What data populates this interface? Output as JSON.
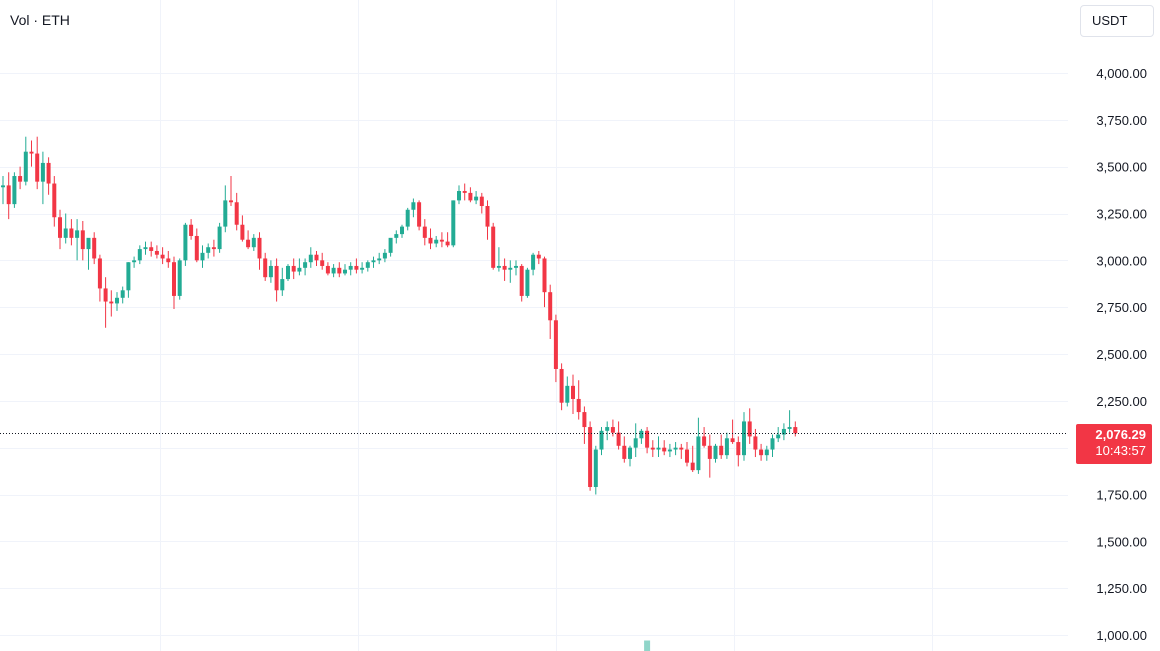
{
  "header": {
    "vol_label": "Vol · ETH"
  },
  "currency_button": {
    "label": "USDT"
  },
  "price_badge": {
    "price": "2,076.29",
    "countdown": "10:43:57"
  },
  "colors": {
    "up": "#22ab94",
    "down": "#f23645",
    "grid": "#f0f3fa",
    "text": "#131722",
    "last_line": "#131722"
  },
  "chart_data": {
    "type": "candlestick",
    "symbol": "ETH",
    "quote": "USDT",
    "y_axis": {
      "ticks": [
        "4,000.00",
        "3,750.00",
        "3,500.00",
        "3,250.00",
        "3,000.00",
        "2,750.00",
        "2,500.00",
        "2,250.00",
        "1,750.00",
        "1,500.00",
        "1,250.00",
        "1,000.00"
      ],
      "tick_values": [
        4000,
        3750,
        3500,
        3250,
        3000,
        2750,
        2500,
        2250,
        1750,
        1500,
        1250,
        1000
      ],
      "range": [
        950,
        4300
      ]
    },
    "last_price": 2076.29,
    "volume_bar": {
      "index": 113,
      "relative": 0.15
    },
    "candles": [
      [
        3390,
        3450,
        3300,
        3400
      ],
      [
        3400,
        3470,
        3220,
        3300
      ],
      [
        3300,
        3470,
        3280,
        3450
      ],
      [
        3450,
        3500,
        3380,
        3420
      ],
      [
        3420,
        3660,
        3400,
        3580
      ],
      [
        3580,
        3640,
        3500,
        3570
      ],
      [
        3570,
        3660,
        3380,
        3420
      ],
      [
        3420,
        3580,
        3300,
        3520
      ],
      [
        3520,
        3550,
        3350,
        3410
      ],
      [
        3410,
        3450,
        3180,
        3230
      ],
      [
        3230,
        3270,
        3060,
        3120
      ],
      [
        3120,
        3250,
        3090,
        3170
      ],
      [
        3170,
        3220,
        3080,
        3120
      ],
      [
        3120,
        3220,
        3000,
        3160
      ],
      [
        3160,
        3210,
        3000,
        3060
      ],
      [
        3060,
        3110,
        2950,
        3120
      ],
      [
        3120,
        3150,
        2980,
        3010
      ],
      [
        3010,
        3030,
        2780,
        2850
      ],
      [
        2850,
        2910,
        2640,
        2780
      ],
      [
        2780,
        2840,
        2700,
        2770
      ],
      [
        2770,
        2830,
        2730,
        2800
      ],
      [
        2800,
        2860,
        2770,
        2840
      ],
      [
        2840,
        2990,
        2800,
        2990
      ],
      [
        2990,
        3020,
        2960,
        3000
      ],
      [
        3000,
        3080,
        2980,
        3060
      ],
      [
        3060,
        3100,
        3030,
        3070
      ],
      [
        3070,
        3100,
        3020,
        3050
      ],
      [
        3050,
        3080,
        3010,
        3030
      ],
      [
        3030,
        3070,
        2980,
        3010
      ],
      [
        3010,
        3050,
        2960,
        2990
      ],
      [
        2990,
        3020,
        2740,
        2810
      ],
      [
        2810,
        3010,
        2790,
        3000
      ],
      [
        3000,
        3200,
        2970,
        3190
      ],
      [
        3190,
        3220,
        3110,
        3130
      ],
      [
        3130,
        3170,
        2990,
        3000
      ],
      [
        3000,
        3080,
        2960,
        3040
      ],
      [
        3040,
        3090,
        3010,
        3070
      ],
      [
        3070,
        3110,
        3020,
        3060
      ],
      [
        3060,
        3200,
        3040,
        3180
      ],
      [
        3180,
        3400,
        3150,
        3320
      ],
      [
        3320,
        3450,
        3290,
        3310
      ],
      [
        3310,
        3360,
        3160,
        3190
      ],
      [
        3190,
        3240,
        3100,
        3110
      ],
      [
        3110,
        3160,
        3060,
        3070
      ],
      [
        3070,
        3140,
        3050,
        3120
      ],
      [
        3120,
        3150,
        2950,
        3010
      ],
      [
        3010,
        3040,
        2890,
        2910
      ],
      [
        2910,
        3000,
        2880,
        2970
      ],
      [
        2970,
        3010,
        2780,
        2840
      ],
      [
        2840,
        2960,
        2810,
        2900
      ],
      [
        2900,
        2980,
        2890,
        2970
      ],
      [
        2970,
        3010,
        2900,
        2940
      ],
      [
        2940,
        3010,
        2920,
        2960
      ],
      [
        2960,
        3010,
        2920,
        2990
      ],
      [
        2990,
        3070,
        2960,
        3030
      ],
      [
        3030,
        3050,
        2970,
        3000
      ],
      [
        3000,
        3040,
        2950,
        2970
      ],
      [
        2970,
        2990,
        2920,
        2930
      ],
      [
        2930,
        2980,
        2910,
        2960
      ],
      [
        2960,
        2990,
        2910,
        2930
      ],
      [
        2930,
        2980,
        2920,
        2950
      ],
      [
        2950,
        2990,
        2920,
        2970
      ],
      [
        2970,
        3010,
        2930,
        2950
      ],
      [
        2950,
        2990,
        2930,
        2960
      ],
      [
        2960,
        3000,
        2940,
        2990
      ],
      [
        2990,
        3020,
        2960,
        3000
      ],
      [
        3000,
        3040,
        2980,
        3010
      ],
      [
        3010,
        3060,
        2990,
        3040
      ],
      [
        3040,
        3100,
        3020,
        3120
      ],
      [
        3120,
        3160,
        3090,
        3140
      ],
      [
        3140,
        3190,
        3120,
        3180
      ],
      [
        3180,
        3280,
        3160,
        3270
      ],
      [
        3270,
        3330,
        3230,
        3310
      ],
      [
        3310,
        3320,
        3160,
        3180
      ],
      [
        3180,
        3220,
        3080,
        3120
      ],
      [
        3120,
        3170,
        3060,
        3090
      ],
      [
        3090,
        3130,
        3070,
        3110
      ],
      [
        3110,
        3150,
        3070,
        3100
      ],
      [
        3100,
        3150,
        3070,
        3080
      ],
      [
        3080,
        3320,
        3070,
        3320
      ],
      [
        3320,
        3400,
        3300,
        3370
      ],
      [
        3370,
        3410,
        3320,
        3360
      ],
      [
        3360,
        3390,
        3310,
        3320
      ],
      [
        3320,
        3370,
        3300,
        3340
      ],
      [
        3340,
        3360,
        3250,
        3290
      ],
      [
        3290,
        3320,
        3110,
        3180
      ],
      [
        3180,
        3200,
        2950,
        2960
      ],
      [
        2960,
        3070,
        2940,
        2970
      ],
      [
        2970,
        3010,
        2890,
        2950
      ],
      [
        2950,
        3000,
        2880,
        2960
      ],
      [
        2960,
        3000,
        2920,
        2970
      ],
      [
        2970,
        2980,
        2780,
        2810
      ],
      [
        2810,
        2960,
        2800,
        2950
      ],
      [
        2950,
        3040,
        2920,
        3030
      ],
      [
        3030,
        3050,
        2980,
        3010
      ],
      [
        3010,
        3020,
        2750,
        2830
      ],
      [
        2830,
        2870,
        2580,
        2680
      ],
      [
        2680,
        2710,
        2350,
        2420
      ],
      [
        2420,
        2450,
        2200,
        2240
      ],
      [
        2240,
        2380,
        2220,
        2330
      ],
      [
        2330,
        2390,
        2180,
        2260
      ],
      [
        2260,
        2360,
        2150,
        2190
      ],
      [
        2190,
        2220,
        2020,
        2110
      ],
      [
        2110,
        2140,
        1770,
        1790
      ],
      [
        1790,
        2010,
        1750,
        1990
      ],
      [
        1990,
        2110,
        1960,
        2090
      ],
      [
        2090,
        2140,
        2040,
        2110
      ],
      [
        2110,
        2150,
        2060,
        2080
      ],
      [
        2080,
        2140,
        1990,
        2010
      ],
      [
        2010,
        2060,
        1920,
        1940
      ],
      [
        1940,
        2010,
        1900,
        2000
      ],
      [
        2000,
        2130,
        1950,
        2050
      ],
      [
        2050,
        2100,
        2020,
        2090
      ],
      [
        2090,
        2110,
        1970,
        2000
      ],
      [
        2000,
        2040,
        1950,
        1990
      ],
      [
        1990,
        2060,
        1950,
        2000
      ],
      [
        2000,
        2040,
        1960,
        1980
      ],
      [
        1980,
        2020,
        1950,
        1990
      ],
      [
        1990,
        2030,
        1960,
        2000
      ],
      [
        2000,
        2020,
        1940,
        1990
      ],
      [
        1990,
        2030,
        1900,
        1920
      ],
      [
        1920,
        2010,
        1870,
        1880
      ],
      [
        1880,
        2160,
        1860,
        2060
      ],
      [
        2060,
        2110,
        2000,
        2010
      ],
      [
        2010,
        2070,
        1840,
        1940
      ],
      [
        1940,
        2020,
        1920,
        2010
      ],
      [
        2010,
        2070,
        1940,
        1960
      ],
      [
        1960,
        2080,
        1940,
        2050
      ],
      [
        2050,
        2150,
        2020,
        2030
      ],
      [
        2030,
        2060,
        1900,
        1960
      ],
      [
        1960,
        2190,
        1930,
        2140
      ],
      [
        2140,
        2210,
        2020,
        2060
      ],
      [
        2060,
        2100,
        1950,
        1990
      ],
      [
        1990,
        2020,
        1930,
        1960
      ],
      [
        1960,
        2010,
        1930,
        1990
      ],
      [
        1990,
        2070,
        1950,
        2050
      ],
      [
        2050,
        2110,
        2030,
        2070
      ],
      [
        2070,
        2130,
        2040,
        2100
      ],
      [
        2100,
        2200,
        2080,
        2110
      ],
      [
        2110,
        2140,
        2060,
        2076.29
      ]
    ]
  }
}
